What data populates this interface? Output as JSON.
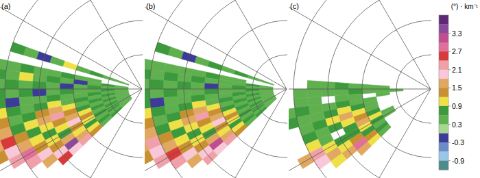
{
  "chart_data": {
    "type": "polar_heatmap",
    "azimuth_edges": [
      20,
      16,
      12,
      8,
      4,
      0,
      -4,
      -8,
      -12,
      -16,
      -20,
      -24,
      -28,
      -32,
      -36,
      -40,
      -44
    ],
    "range_edges": [
      0,
      20,
      40,
      60,
      80,
      100,
      120,
      140,
      160,
      180,
      200,
      220,
      240
    ],
    "range_rings": [
      50,
      100,
      150,
      200
    ],
    "radials": [
      60,
      30,
      0,
      -30,
      -60
    ],
    "panels": [
      {
        "label": "(a)",
        "cells": [
          [
            null,
            0.3,
            0.3,
            0.6,
            0.3,
            0.9,
            0.3,
            -0.3,
            0.3,
            0.6,
            null,
            null
          ],
          [
            null,
            null,
            null,
            null,
            null,
            null,
            null,
            null,
            null,
            null,
            null,
            null
          ],
          [
            null,
            null,
            null,
            0.3,
            0.3,
            0.6,
            0.3,
            0.3,
            0.6,
            0.3,
            0.3,
            0.6
          ],
          [
            null,
            0.3,
            0.6,
            0.3,
            -0.3,
            0.3,
            0.6,
            0.3,
            0.9,
            0.3,
            0.6,
            0.3
          ],
          [
            null,
            0.3,
            0.3,
            0.6,
            0.3,
            -0.3,
            0.3,
            0.6,
            0.3,
            0.6,
            0.3,
            0.6
          ],
          [
            null,
            0.3,
            0.6,
            0.3,
            0.3,
            0.6,
            0.3,
            -0.3,
            0.6,
            0.3,
            0.6,
            0.3
          ],
          [
            null,
            0.3,
            0.3,
            0.6,
            0.3,
            0.3,
            0.6,
            0.3,
            0.3,
            -0.3,
            0.6,
            0.3
          ],
          [
            null,
            0.3,
            0.6,
            0.3,
            0.6,
            0.3,
            0.9,
            0.6,
            0.3,
            0.6,
            0.9,
            0.6
          ],
          [
            null,
            0.3,
            0.3,
            0.6,
            0.3,
            0.9,
            1.5,
            1.2,
            0.6,
            0.3,
            1.2,
            0.9
          ],
          [
            null,
            0.3,
            0.6,
            0.3,
            0.6,
            1.2,
            2.1,
            1.5,
            0.9,
            0.6,
            1.5,
            1.2
          ],
          [
            null,
            0.3,
            0.3,
            0.6,
            0.9,
            1.5,
            1.2,
            0.9,
            0.6,
            1.2,
            2.4,
            1.5
          ],
          [
            null,
            0.3,
            0.6,
            0.3,
            1.2,
            1.8,
            0.9,
            0.6,
            0.9,
            1.5,
            1.8,
            1.2
          ],
          [
            null,
            0.3,
            0.3,
            0.6,
            0.9,
            1.2,
            0.6,
            0.9,
            1.2,
            2.7,
            2.1,
            null
          ],
          [
            null,
            0.3,
            0.6,
            0.3,
            0.6,
            0.9,
            1.5,
            1.2,
            1.8,
            2.1,
            null,
            null
          ],
          [
            null,
            0.3,
            0.3,
            0.6,
            0.9,
            1.5,
            3.3,
            1.8,
            1.5,
            null,
            null,
            null
          ],
          [
            null,
            0.3,
            0.6,
            0.3,
            1.2,
            2.1,
            1.8,
            2.4,
            null,
            null,
            null,
            null
          ]
        ]
      },
      {
        "label": "(b)",
        "cells": [
          [
            null,
            0.3,
            0.3,
            0.6,
            0.3,
            0.6,
            0.3,
            -0.3,
            0.3,
            0.6,
            null,
            null
          ],
          [
            null,
            null,
            null,
            null,
            null,
            null,
            null,
            null,
            null,
            null,
            null,
            null
          ],
          [
            null,
            null,
            null,
            0.3,
            0.3,
            0.6,
            0.3,
            0.3,
            0.3,
            0.3,
            0.3,
            0.6
          ],
          [
            null,
            0.3,
            0.6,
            0.3,
            0.3,
            0.3,
            0.6,
            0.3,
            0.6,
            0.3,
            0.6,
            0.3
          ],
          [
            null,
            0.3,
            0.3,
            0.6,
            0.3,
            -0.3,
            0.3,
            0.6,
            0.3,
            0.6,
            0.3,
            0.6
          ],
          [
            null,
            0.3,
            0.6,
            0.3,
            0.3,
            0.6,
            0.3,
            0.3,
            0.6,
            0.3,
            0.6,
            0.3
          ],
          [
            null,
            0.3,
            0.3,
            0.6,
            0.3,
            0.3,
            0.6,
            0.3,
            0.3,
            -0.3,
            0.6,
            0.3
          ],
          [
            null,
            0.3,
            0.6,
            0.3,
            0.6,
            0.3,
            0.9,
            0.6,
            0.3,
            0.6,
            0.9,
            0.6
          ],
          [
            null,
            0.3,
            0.3,
            0.6,
            0.3,
            0.9,
            1.5,
            1.2,
            0.6,
            0.3,
            1.2,
            0.9
          ],
          [
            null,
            0.3,
            0.6,
            0.3,
            0.6,
            1.2,
            2.1,
            1.5,
            0.9,
            0.6,
            1.5,
            1.2
          ],
          [
            null,
            0.3,
            0.3,
            0.6,
            0.9,
            1.5,
            1.2,
            0.9,
            0.6,
            1.2,
            2.1,
            1.5
          ],
          [
            null,
            0.3,
            0.6,
            0.3,
            1.2,
            1.8,
            0.9,
            0.6,
            0.9,
            1.5,
            1.8,
            1.2
          ],
          [
            null,
            0.3,
            0.3,
            0.6,
            0.9,
            1.2,
            0.6,
            0.9,
            1.2,
            2.4,
            2.1,
            null
          ],
          [
            null,
            0.3,
            0.6,
            0.3,
            0.6,
            0.9,
            1.5,
            1.2,
            1.8,
            2.1,
            null,
            null
          ],
          [
            null,
            0.3,
            0.3,
            0.6,
            0.9,
            1.5,
            3.0,
            1.8,
            1.5,
            null,
            null,
            null
          ],
          [
            null,
            0.3,
            0.6,
            0.3,
            1.2,
            2.1,
            1.8,
            2.1,
            null,
            null,
            null,
            null
          ]
        ]
      },
      {
        "label": "(c)",
        "cells": [
          [
            null,
            null,
            null,
            null,
            null,
            null,
            null,
            null,
            null,
            null,
            null,
            null
          ],
          [
            null,
            null,
            null,
            null,
            null,
            null,
            null,
            null,
            null,
            null,
            null,
            null
          ],
          [
            null,
            null,
            null,
            null,
            null,
            null,
            null,
            null,
            null,
            null,
            null,
            null
          ],
          [
            null,
            null,
            null,
            null,
            null,
            null,
            null,
            null,
            null,
            null,
            null,
            null
          ],
          [
            null,
            null,
            null,
            0.3,
            0.3,
            0.3,
            0.6,
            0.3,
            0.3,
            null,
            null,
            null
          ],
          [
            null,
            null,
            0.3,
            0.3,
            0.3,
            0.6,
            0.3,
            0.3,
            0.3,
            0.3,
            null,
            null
          ],
          [
            null,
            null,
            null,
            0.3,
            null,
            0.3,
            0.3,
            null,
            0.3,
            0.3,
            null,
            null
          ],
          [
            null,
            null,
            null,
            null,
            0.3,
            0.3,
            0.6,
            0.3,
            0.3,
            0.6,
            0.3,
            null
          ],
          [
            null,
            null,
            null,
            null,
            0.3,
            0.6,
            0.9,
            0.6,
            0.3,
            0.3,
            0.6,
            null
          ],
          [
            null,
            null,
            null,
            null,
            0.3,
            0.9,
            1.5,
            0.9,
            0.6,
            0.3,
            null,
            null
          ],
          [
            null,
            null,
            null,
            null,
            0.6,
            1.2,
            0.9,
            0.6,
            0.3,
            0.6,
            null,
            null
          ],
          [
            null,
            null,
            null,
            0.3,
            0.9,
            1.5,
            0.6,
            null,
            0.3,
            0.9,
            null,
            null
          ],
          [
            null,
            null,
            null,
            0.3,
            0.6,
            0.9,
            0.6,
            0.6,
            0.9,
            2.1,
            1.5,
            null
          ],
          [
            null,
            null,
            null,
            null,
            0.3,
            0.6,
            1.2,
            0.9,
            1.5,
            1.8,
            null,
            null
          ],
          [
            null,
            null,
            null,
            null,
            0.6,
            1.2,
            2.7,
            1.5,
            0.9,
            null,
            null,
            null
          ],
          [
            null,
            null,
            null,
            null,
            0.3,
            0.9,
            1.5,
            null,
            null,
            null,
            null,
            null
          ]
        ]
      }
    ],
    "colorbar": {
      "title": "(°) · km⁻¹",
      "range": [
        -1.2,
        3.9
      ],
      "ticks": [
        3.3,
        2.7,
        2.1,
        1.5,
        0.9,
        0.3,
        -0.3,
        -0.9
      ],
      "bands": [
        {
          "min": 3.6,
          "max": 3.9,
          "color": "#5e2a78"
        },
        {
          "min": 3.3,
          "max": 3.6,
          "color": "#8a4a9a"
        },
        {
          "min": 3.0,
          "max": 3.3,
          "color": "#c04e8e"
        },
        {
          "min": 2.7,
          "max": 3.0,
          "color": "#e0709a"
        },
        {
          "min": 2.4,
          "max": 2.7,
          "color": "#d83a3a"
        },
        {
          "min": 2.1,
          "max": 2.4,
          "color": "#f0a0a8"
        },
        {
          "min": 1.8,
          "max": 2.1,
          "color": "#f8c8d8"
        },
        {
          "min": 1.5,
          "max": 1.8,
          "color": "#e0a860"
        },
        {
          "min": 1.2,
          "max": 1.5,
          "color": "#c89030"
        },
        {
          "min": 0.9,
          "max": 1.2,
          "color": "#f0e048"
        },
        {
          "min": 0.6,
          "max": 0.9,
          "color": "#3c9a3c"
        },
        {
          "min": 0.3,
          "max": 0.6,
          "color": "#60b050"
        },
        {
          "min": 0.0,
          "max": 0.3,
          "color": "#a8d890"
        },
        {
          "min": -0.3,
          "max": 0.0,
          "color": "#3c3c98"
        },
        {
          "min": -0.6,
          "max": -0.3,
          "color": "#6c8cc8"
        },
        {
          "min": -0.9,
          "max": -0.6,
          "color": "#98c8e8"
        },
        {
          "min": -1.2,
          "max": -0.9,
          "color": "#4c8c8c"
        }
      ]
    }
  }
}
